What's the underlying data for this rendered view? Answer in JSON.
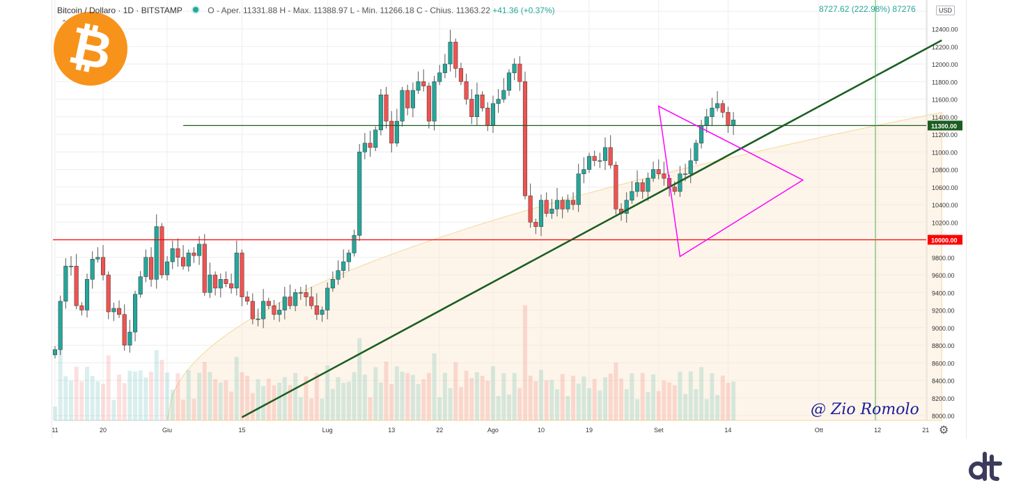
{
  "legend": {
    "symbol": "Bitcoin / Dollaro · 1D · BITSTAMP",
    "ohlc_text": "O - Aper. 11331.88  H - Max. 11388.97  L - Min. 11266.18  C - Chius. 11363.22",
    "change": "+41.36 (+0.37%)"
  },
  "measure_label": "8727.62 (222.98%) 87276",
  "currency_badge": "USD",
  "icons": {
    "logo": "bitcoin-logo-icon",
    "settings": "gear-icon",
    "brand": "dt-logo-icon"
  },
  "watermark": {
    "text": "@ Zio Romolo"
  },
  "colors": {
    "up": "#26a69a",
    "down": "#ef5350",
    "trend": "#1b5e20",
    "support": "#ff0000",
    "triangle": "#ff00ff"
  },
  "chart_data": {
    "type": "candlestick",
    "ylim": [
      7900,
      12650
    ],
    "y_ticks": [
      "12400.00",
      "12200.00",
      "12000.00",
      "11800.00",
      "11600.00",
      "11400.00",
      "11200.00",
      "11000.00",
      "10800.00",
      "10600.00",
      "10400.00",
      "10200.00",
      "9800.00",
      "9600.00",
      "9400.00",
      "9200.00",
      "9000.00",
      "8800.00",
      "8600.00",
      "8400.00",
      "8200.00",
      "8000.00"
    ],
    "x_ticks": [
      {
        "label": "11",
        "day": 0
      },
      {
        "label": "20",
        "day": 9
      },
      {
        "label": "Giu",
        "day": 21
      },
      {
        "label": "15",
        "day": 35
      },
      {
        "label": "Lug",
        "day": 51
      },
      {
        "label": "13",
        "day": 63
      },
      {
        "label": "22",
        "day": 72
      },
      {
        "label": "Ago",
        "day": 82
      },
      {
        "label": "10",
        "day": 91
      },
      {
        "label": "19",
        "day": 100
      },
      {
        "label": "Set",
        "day": 113
      },
      {
        "label": "14",
        "day": 126
      },
      {
        "label": "Ott",
        "day": 143
      },
      {
        "label": "12",
        "day": 154
      },
      {
        "label": "21",
        "day": 163
      }
    ],
    "price_labels": [
      {
        "price": 11300,
        "text": "11300.00",
        "color": "#1b5e20"
      },
      {
        "price": 10000,
        "text": "10000.00",
        "color": "#ff0000"
      }
    ],
    "lines": [
      {
        "name": "resistance",
        "price": 11300
      },
      {
        "name": "support",
        "price": 10000
      },
      {
        "name": "trendline",
        "from": [
          35,
          7980
        ],
        "to": [
          166,
          12270
        ]
      }
    ],
    "triangle": {
      "points": [
        [
          113,
          11520
        ],
        [
          140,
          10680
        ],
        [
          117,
          9810
        ]
      ]
    },
    "closes": [
      8750,
      9300,
      9700,
      9700,
      9250,
      9200,
      9550,
      9780,
      9800,
      9600,
      9180,
      9220,
      9150,
      8800,
      8950,
      9380,
      9580,
      9800,
      9550,
      10150,
      9600,
      9750,
      9900,
      9800,
      9700,
      9850,
      9820,
      9950,
      9400,
      9600,
      9450,
      9550,
      9500,
      9450,
      9850,
      9350,
      9300,
      9100,
      9100,
      9300,
      9250,
      9150,
      9200,
      9350,
      9250,
      9400,
      9400,
      9350,
      9250,
      9150,
      9200,
      9450,
      9550,
      9650,
      9750,
      9850,
      10050,
      11000,
      11100,
      11050,
      11250,
      11650,
      11350,
      11100,
      11350,
      11700,
      11500,
      11700,
      11800,
      11750,
      11350,
      11800,
      11900,
      12000,
      12250,
      11950,
      11800,
      11600,
      11400,
      11650,
      11500,
      11300,
      11550,
      11600,
      11700,
      11900,
      12000,
      11800,
      10500,
      10200,
      10150,
      10450,
      10300,
      10350,
      10450,
      10350,
      10450,
      10400,
      10750,
      10800,
      10950,
      10900,
      10900,
      11050,
      10850,
      10350,
      10300,
      10450,
      10550,
      10650,
      10550,
      10700,
      10800,
      10750,
      10700,
      10600,
      10550,
      10750,
      10750,
      10900,
      11100,
      11300,
      11400,
      11500,
      11550,
      11450,
      11300,
      11363
    ]
  }
}
